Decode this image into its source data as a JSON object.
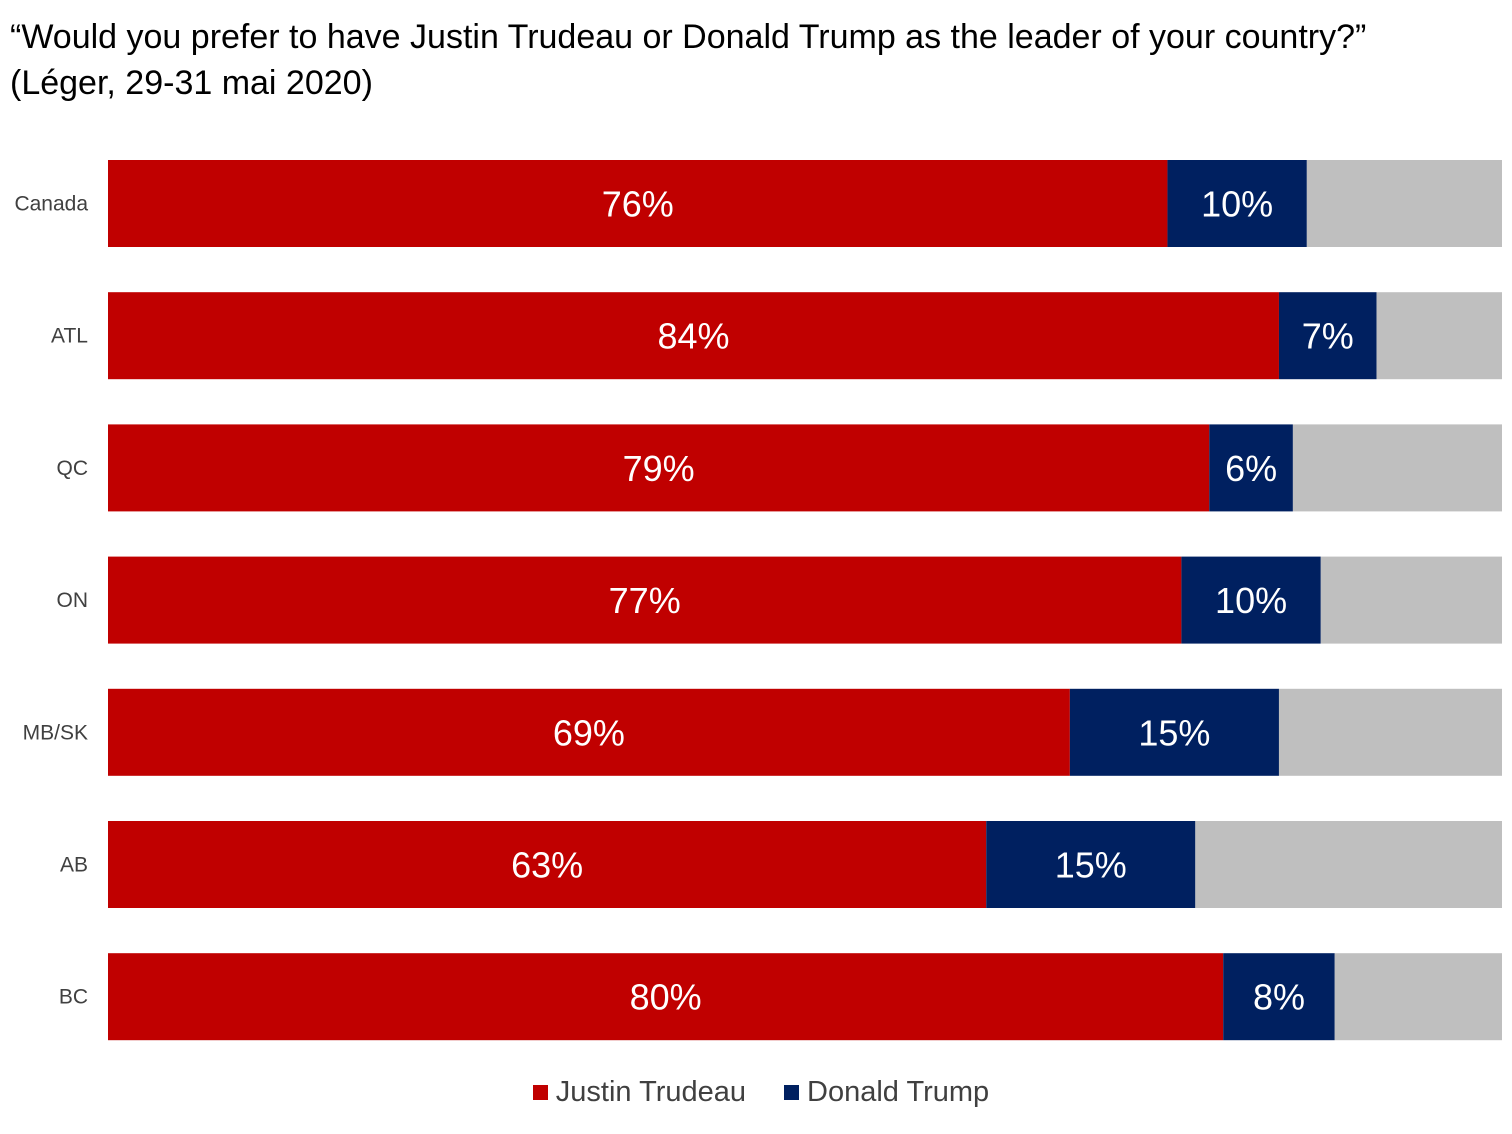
{
  "chart_data": {
    "type": "bar",
    "orientation": "horizontal",
    "stacked": true,
    "title": "“Would you prefer to have Justin Trudeau or Donald Trump as the leader of your country?”",
    "subtitle": "(Léger, 29-31 mai 2020)",
    "xlabel": "",
    "ylabel": "",
    "xlim": [
      0,
      100
    ],
    "grid": false,
    "legend_position": "bottom",
    "categories": [
      "Canada",
      "ATL",
      "QC",
      "ON",
      "MB/SK",
      "AB",
      "BC"
    ],
    "series": [
      {
        "name": "Justin Trudeau",
        "color": "#c00000",
        "values": [
          76,
          84,
          79,
          77,
          69,
          63,
          80
        ],
        "labels": [
          "76%",
          "84%",
          "79%",
          "77%",
          "69%",
          "63%",
          "80%"
        ]
      },
      {
        "name": "Donald Trump",
        "color": "#002060",
        "values": [
          10,
          7,
          6,
          10,
          15,
          15,
          8
        ],
        "labels": [
          "10%",
          "7%",
          "6%",
          "10%",
          "15%",
          "15%",
          "8%"
        ]
      },
      {
        "color": "#bfbfbf",
        "values": [
          14,
          9,
          15,
          13,
          16,
          22,
          12
        ]
      }
    ]
  }
}
